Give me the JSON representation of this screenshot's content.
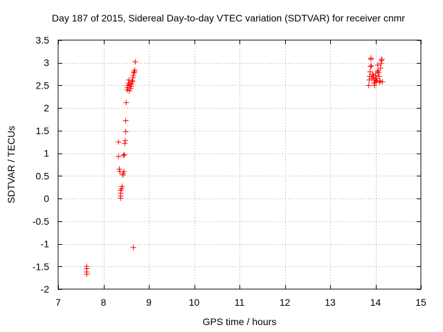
{
  "chart_data": {
    "type": "scatter",
    "title": "Day 187 of 2015, Sidereal Day-to-day VTEC variation (SDTVAR) for receiver cnmr",
    "xlabel": "GPS time / hours",
    "ylabel": "SDTVAR / TECUs",
    "xlim": [
      7,
      15
    ],
    "ylim": [
      -2,
      3.5
    ],
    "xticks": [
      "7",
      "8",
      "9",
      "10",
      "11",
      "12",
      "13",
      "14",
      "15"
    ],
    "yticks": [
      "-2",
      "-1.5",
      "-1",
      "-0.5",
      "0",
      "0.5",
      "1",
      "1.5",
      "2",
      "2.5",
      "3",
      "3.5"
    ],
    "grid": true,
    "marker": "+",
    "color": "#ff0000",
    "series": [
      {
        "name": "SDTVAR",
        "points": [
          [
            7.63,
            -1.5
          ],
          [
            7.63,
            -1.55
          ],
          [
            7.63,
            -1.62
          ],
          [
            7.63,
            -1.67
          ],
          [
            8.33,
            1.25
          ],
          [
            8.33,
            0.93
          ],
          [
            8.35,
            0.65
          ],
          [
            8.36,
            0.6
          ],
          [
            8.38,
            0.18
          ],
          [
            8.38,
            0.12
          ],
          [
            8.38,
            0.06
          ],
          [
            8.38,
            0.01
          ],
          [
            8.4,
            0.22
          ],
          [
            8.41,
            0.27
          ],
          [
            8.43,
            0.55
          ],
          [
            8.43,
            0.52
          ],
          [
            8.45,
            0.6
          ],
          [
            8.44,
            0.95
          ],
          [
            8.46,
            0.97
          ],
          [
            8.47,
            1.22
          ],
          [
            8.48,
            1.28
          ],
          [
            8.49,
            1.48
          ],
          [
            8.49,
            1.72
          ],
          [
            8.5,
            2.12
          ],
          [
            8.52,
            2.4
          ],
          [
            8.53,
            2.45
          ],
          [
            8.54,
            2.5
          ],
          [
            8.55,
            2.55
          ],
          [
            8.56,
            2.62
          ],
          [
            8.57,
            2.38
          ],
          [
            8.58,
            2.52
          ],
          [
            8.6,
            2.43
          ],
          [
            8.61,
            2.48
          ],
          [
            8.62,
            2.53
          ],
          [
            8.63,
            2.58
          ],
          [
            8.64,
            2.6
          ],
          [
            8.65,
            2.67
          ],
          [
            8.66,
            2.72
          ],
          [
            8.67,
            2.78
          ],
          [
            8.68,
            2.8
          ],
          [
            8.69,
            2.84
          ],
          [
            8.7,
            3.02
          ],
          [
            8.66,
            -1.08
          ],
          [
            13.85,
            2.5
          ],
          [
            13.86,
            2.62
          ],
          [
            13.87,
            2.7
          ],
          [
            13.88,
            2.8
          ],
          [
            13.89,
            2.92
          ],
          [
            13.9,
            3.08
          ],
          [
            13.9,
            3.1
          ],
          [
            13.91,
            2.93
          ],
          [
            13.92,
            2.65
          ],
          [
            13.94,
            2.75
          ],
          [
            13.95,
            2.72
          ],
          [
            13.96,
            2.68
          ],
          [
            13.97,
            2.55
          ],
          [
            13.98,
            2.5
          ],
          [
            13.99,
            2.62
          ],
          [
            14.0,
            2.72
          ],
          [
            14.01,
            2.58
          ],
          [
            14.02,
            2.6
          ],
          [
            14.03,
            2.65
          ],
          [
            14.04,
            2.8
          ],
          [
            14.05,
            2.95
          ],
          [
            14.06,
            2.83
          ],
          [
            14.07,
            2.78
          ],
          [
            14.08,
            2.7
          ],
          [
            14.09,
            2.57
          ],
          [
            14.1,
            2.6
          ],
          [
            14.11,
            2.88
          ],
          [
            14.12,
            2.98
          ],
          [
            14.13,
            3.05
          ],
          [
            14.14,
            3.08
          ],
          [
            14.15,
            2.58
          ]
        ]
      }
    ]
  }
}
